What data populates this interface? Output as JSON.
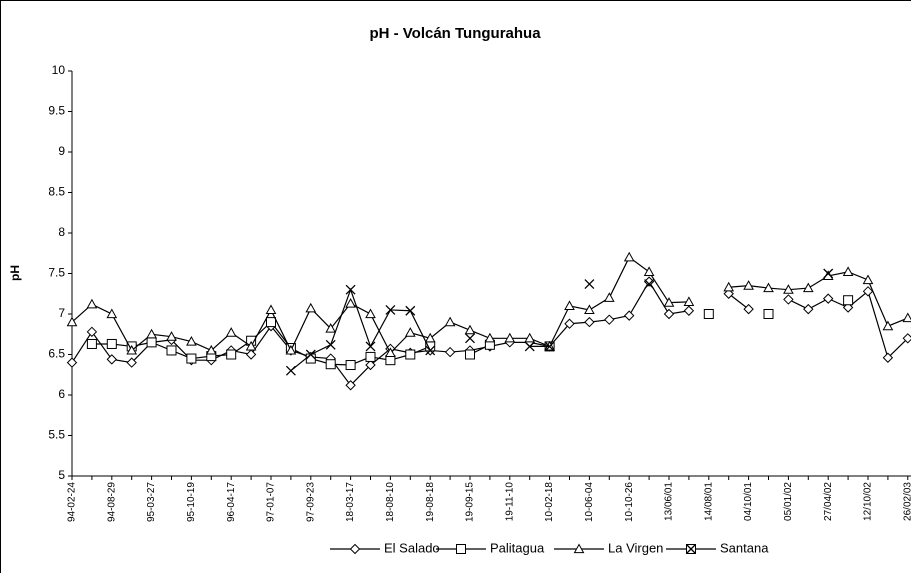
{
  "chart_data": {
    "type": "line",
    "title": "pH - Volcán Tungurahua",
    "y_label": "pH",
    "categories": [
      "94-02-24",
      null,
      "94-08-29",
      null,
      "95-03-27",
      null,
      "95-10-19",
      null,
      "96-04-17",
      null,
      "97-01-07",
      null,
      "97-09-23",
      null,
      "18-03-17",
      null,
      "18-08-10",
      null,
      "19-08-18",
      null,
      "19-09-15",
      null,
      "19-11-10",
      null,
      "10-02-18",
      null,
      "10-06-04",
      null,
      "10-10-26",
      null,
      "13/06/01",
      null,
      "14/08/01",
      null,
      "04/10/01",
      null,
      "05/01/02",
      null,
      "27/04/02",
      null,
      "12/10/02",
      null,
      "26/02/03"
    ],
    "series": [
      {
        "name": "El Salado",
        "color": "#000000",
        "marker": "diamond",
        "values": [
          6.4,
          6.78,
          6.44,
          6.4,
          6.65,
          6.68,
          6.43,
          6.43,
          6.55,
          6.5,
          6.85,
          6.55,
          6.47,
          6.45,
          6.12,
          6.37,
          6.57,
          6.52,
          6.55,
          6.53,
          6.55,
          6.6,
          6.65,
          6.65,
          6.6,
          6.88,
          6.9,
          6.93,
          6.98,
          7.4,
          7.0,
          7.04,
          null,
          7.25,
          7.06,
          null,
          7.18,
          7.06,
          7.19,
          7.08,
          7.28,
          6.46,
          6.7
        ]
      },
      {
        "name": "Palitagua",
        "color": "#000000",
        "marker": "square",
        "values": [
          null,
          6.63,
          6.63,
          6.6,
          6.65,
          6.55,
          6.45,
          6.48,
          6.5,
          6.67,
          6.9,
          6.58,
          6.45,
          6.38,
          6.37,
          6.47,
          6.43,
          6.5,
          6.6,
          null,
          6.5,
          6.62,
          null,
          null,
          6.6,
          null,
          null,
          null,
          null,
          null,
          null,
          null,
          7.0,
          null,
          null,
          7.0,
          null,
          null,
          null,
          7.17,
          null,
          null,
          null
        ]
      },
      {
        "name": "La Virgen",
        "color": "#000000",
        "marker": "triangle",
        "values": [
          6.9,
          7.12,
          7.0,
          6.55,
          6.75,
          6.72,
          6.66,
          6.55,
          6.77,
          6.6,
          7.05,
          6.55,
          7.07,
          6.82,
          7.13,
          7.0,
          6.52,
          6.77,
          6.7,
          6.9,
          6.8,
          6.7,
          6.7,
          6.7,
          6.6,
          7.1,
          7.05,
          7.2,
          7.7,
          7.52,
          7.14,
          7.15,
          null,
          7.33,
          7.35,
          7.32,
          7.3,
          7.32,
          7.47,
          7.52,
          7.42,
          6.85,
          6.95
        ]
      },
      {
        "name": "Santana",
        "color": "#000000",
        "marker": "x",
        "values": [
          null,
          null,
          null,
          null,
          null,
          null,
          null,
          null,
          null,
          null,
          null,
          6.3,
          6.5,
          6.62,
          7.3,
          6.6,
          7.05,
          7.04,
          6.55,
          null,
          6.7,
          null,
          null,
          6.6,
          6.6,
          null,
          7.37,
          null,
          null,
          7.37,
          null,
          null,
          null,
          null,
          null,
          null,
          null,
          null,
          7.5,
          null,
          null,
          null,
          null
        ]
      }
    ],
    "ylim": [
      5,
      10
    ],
    "yticks": [
      5,
      5.5,
      6,
      6.5,
      7,
      7.5,
      8,
      8.5,
      9,
      9.5,
      10
    ],
    "legend": "bottom"
  }
}
